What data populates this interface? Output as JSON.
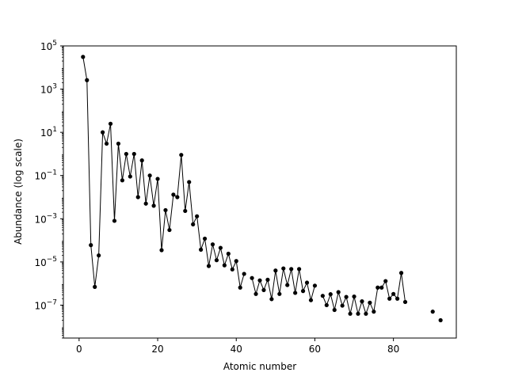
{
  "chart_data": {
    "type": "line",
    "title": "",
    "xlabel": "Atomic number",
    "ylabel": "Abundance (log scale)",
    "xlim": [
      -4,
      96
    ],
    "ylim": [
      3e-09,
      100000
    ],
    "yscale": "log",
    "grid": false,
    "legend": "none",
    "line_color": "#000000",
    "marker_color": "#000000",
    "x_ticks": [
      {
        "value": 0,
        "label": "0"
      },
      {
        "value": 20,
        "label": "20"
      },
      {
        "value": 40,
        "label": "40"
      },
      {
        "value": 60,
        "label": "60"
      },
      {
        "value": 80,
        "label": "80"
      }
    ],
    "y_ticks": [
      {
        "value": 1e-07,
        "base": "10",
        "exp": "−7"
      },
      {
        "value": 1e-05,
        "base": "10",
        "exp": "−5"
      },
      {
        "value": 0.001,
        "base": "10",
        "exp": "−3"
      },
      {
        "value": 0.1,
        "base": "10",
        "exp": "−1"
      },
      {
        "value": 10,
        "base": "10",
        "exp": "1"
      },
      {
        "value": 1000,
        "base": "10",
        "exp": "3"
      },
      {
        "value": 100000,
        "base": "10",
        "exp": "5"
      }
    ],
    "x": [
      1,
      2,
      3,
      4,
      5,
      6,
      7,
      8,
      9,
      10,
      11,
      12,
      13,
      14,
      15,
      16,
      17,
      18,
      19,
      20,
      21,
      22,
      23,
      24,
      25,
      26,
      27,
      28,
      29,
      30,
      31,
      32,
      33,
      34,
      35,
      36,
      37,
      38,
      39,
      40,
      41,
      42,
      43,
      44,
      45,
      46,
      47,
      48,
      49,
      50,
      51,
      52,
      53,
      54,
      55,
      56,
      57,
      58,
      59,
      60,
      61,
      62,
      63,
      64,
      65,
      66,
      67,
      68,
      69,
      70,
      71,
      72,
      73,
      74,
      75,
      76,
      77,
      78,
      79,
      80,
      81,
      82,
      83,
      84,
      85,
      86,
      87,
      88,
      89,
      90,
      91,
      92
    ],
    "values": [
      31000,
      2600,
      6e-05,
      7e-07,
      2e-05,
      10,
      3,
      25,
      0.0008,
      3,
      0.06,
      1,
      0.09,
      1,
      0.01,
      0.5,
      0.005,
      0.1,
      0.004,
      0.07,
      3.5e-05,
      0.0025,
      0.0003,
      0.013,
      0.01,
      0.9,
      0.0023,
      0.05,
      0.00055,
      0.0013,
      3.7e-05,
      0.00012,
      6.5e-06,
      6.5e-05,
      1.2e-05,
      4.5e-05,
      7e-06,
      2.4e-05,
      4.5e-06,
      1.1e-05,
      6.5e-07,
      2.8e-06,
      null,
      1.8e-06,
      3.3e-07,
      1.4e-06,
      5e-07,
      1.5e-06,
      1.9e-07,
      4e-06,
      3.3e-07,
      5e-06,
      8.5e-07,
      4.7e-06,
      3.7e-07,
      4.7e-06,
      4.5e-07,
      1.1e-06,
      1.7e-07,
      8e-07,
      null,
      2.7e-07,
      1e-07,
      3.2e-07,
      6e-08,
      4e-07,
      9.5e-08,
      2.4e-07,
      4e-08,
      2.5e-07,
      4e-08,
      1.5e-07,
      4e-08,
      1.3e-07,
      5e-08,
      6.5e-07,
      6.5e-07,
      1.3e-06,
      2e-07,
      3.3e-07,
      2e-07,
      3.1e-06,
      1.4e-07,
      null,
      null,
      null,
      null,
      null,
      null,
      5e-08,
      null,
      2e-08
    ]
  }
}
